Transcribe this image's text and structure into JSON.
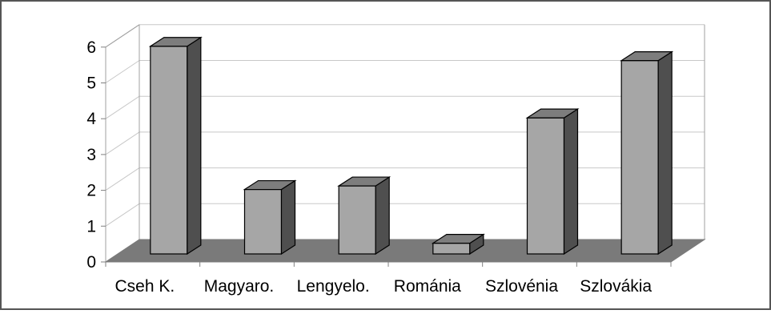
{
  "chart_data": {
    "type": "bar",
    "categories": [
      "Cseh K.",
      "Magyaro.",
      "Lengyelo.",
      "Románia",
      "Szlovénia",
      "Szlovákia"
    ],
    "values": [
      5.8,
      1.8,
      1.9,
      0.3,
      3.8,
      5.4
    ],
    "yticks": [
      "0",
      "1",
      "2",
      "3",
      "4",
      "5",
      "6"
    ],
    "ylim": [
      0,
      6
    ],
    "title": "",
    "xlabel": "",
    "ylabel": "",
    "grid": true,
    "legend": "none",
    "colors": {
      "bar_front": "#a6a6a6",
      "bar_top": "#7d7d7d",
      "bar_side": "#4f4f4f",
      "floor": "#7a7a7a",
      "gridline": "#c8c8c8",
      "wall_edge": "#a0a0a0",
      "outline": "#000000"
    }
  }
}
